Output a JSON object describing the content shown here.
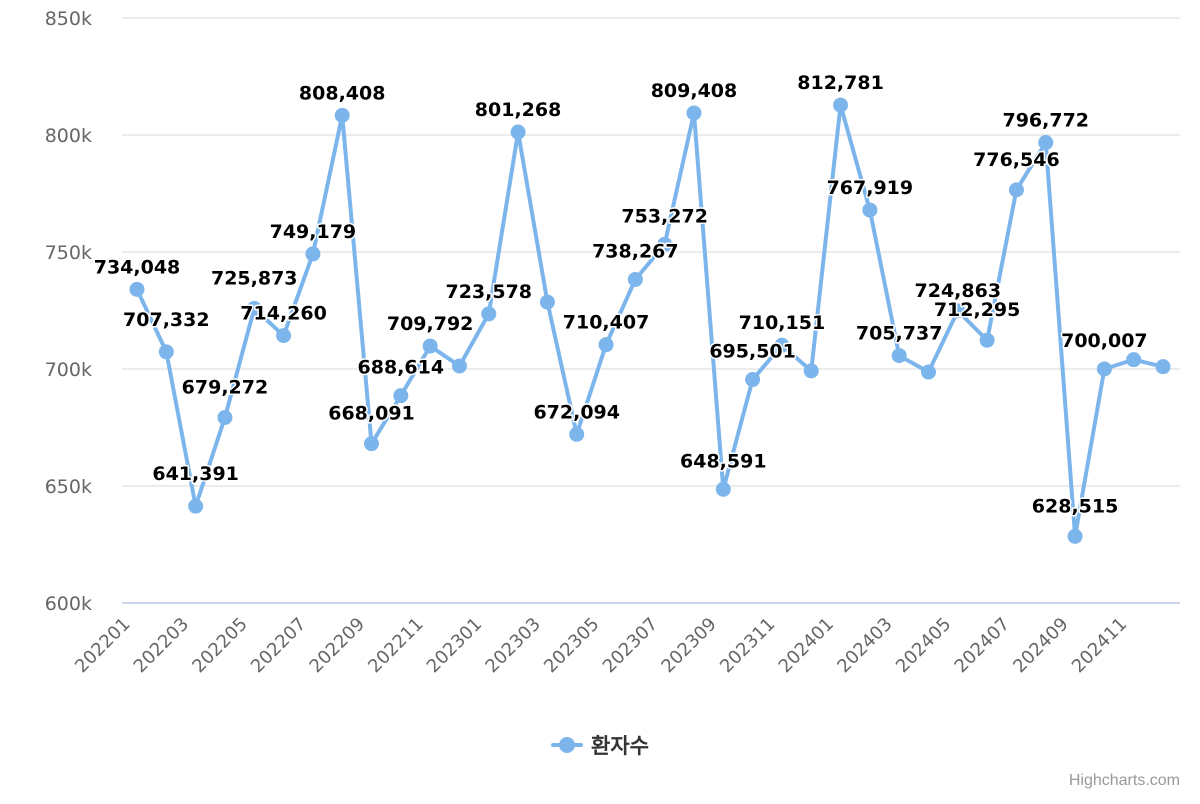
{
  "chart_data": {
    "type": "line",
    "title": "",
    "xlabel": "",
    "ylabel": "",
    "ylim": [
      600000,
      850000
    ],
    "y_ticks": [
      600000,
      650000,
      700000,
      750000,
      800000,
      850000
    ],
    "y_tick_labels": [
      "600k",
      "650k",
      "700k",
      "750k",
      "800k",
      "850k"
    ],
    "grid": true,
    "legend_position": "bottom-center",
    "categories": [
      "202201",
      "202202",
      "202203",
      "202204",
      "202205",
      "202206",
      "202207",
      "202208",
      "202209",
      "202210",
      "202211",
      "202212",
      "202301",
      "202302",
      "202303",
      "202304",
      "202305",
      "202306",
      "202307",
      "202308",
      "202309",
      "202310",
      "202311",
      "202312",
      "202401",
      "202402",
      "202403",
      "202404",
      "202405",
      "202406",
      "202407",
      "202408",
      "202409",
      "202410",
      "202411",
      "202412"
    ],
    "x_tick_labels": [
      "202201",
      "202203",
      "202205",
      "202207",
      "202209",
      "202211",
      "202301",
      "202303",
      "202305",
      "202307",
      "202309",
      "202311",
      "202401",
      "202403",
      "202405",
      "202407",
      "202409",
      "202411"
    ],
    "series": [
      {
        "name": "환자수",
        "color": "#7cb5ec",
        "values": [
          734048,
          707332,
          641391,
          679272,
          725873,
          714260,
          749179,
          808408,
          668091,
          688614,
          709792,
          701300,
          723578,
          801268,
          728600,
          672094,
          710407,
          738267,
          753272,
          809408,
          648591,
          695501,
          710151,
          699200,
          812781,
          767919,
          705737,
          698700,
          724863,
          712295,
          776546,
          796772,
          628515,
          700007,
          704000,
          701000
        ],
        "data_labels": [
          "734,048",
          "707,332",
          "641,391",
          "679,272",
          "725,873",
          "714,260",
          "749,179",
          "808,408",
          "668,091",
          "688,614",
          "709,792",
          "",
          "723,578",
          "801,268",
          "",
          "672,094",
          "710,407",
          "738,267",
          "753,272",
          "809,408",
          "648,591",
          "695,501",
          "710,151",
          "",
          "812,781",
          "767,919",
          "705,737",
          "",
          "724,863",
          "712,295",
          "776,546",
          "796,772",
          "628,515",
          "700,007",
          "",
          ""
        ]
      }
    ]
  },
  "legend": {
    "items": [
      {
        "label": "환자수",
        "color": "#7cb5ec",
        "icon": "line-circle-marker-icon"
      }
    ]
  },
  "credits": {
    "text": "Highcharts.com"
  }
}
